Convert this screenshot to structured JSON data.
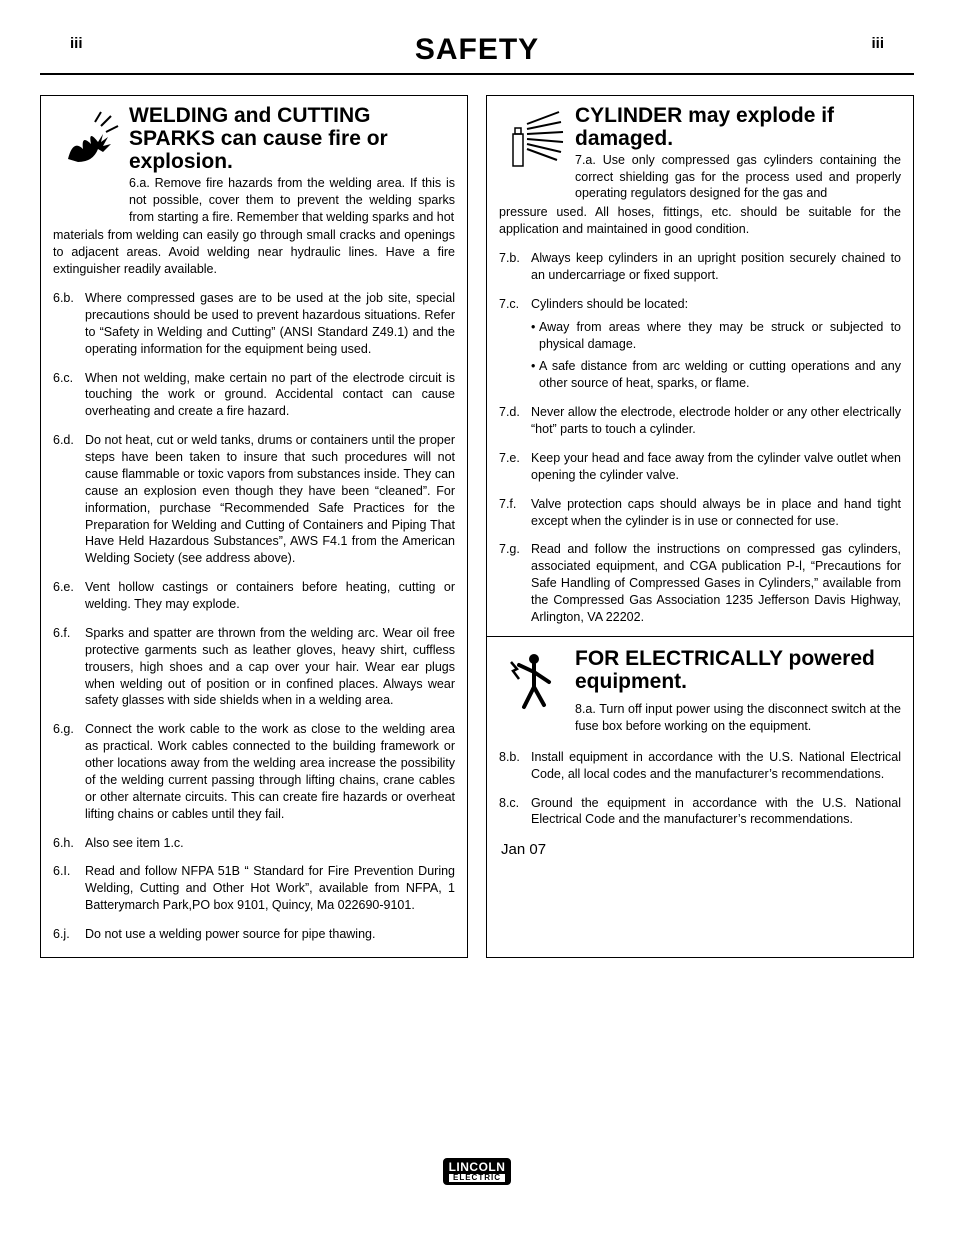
{
  "page": {
    "page_number": "iii",
    "title": "SAFETY",
    "date": "Jan 07",
    "logo": {
      "top": "LINCOLN",
      "bottom": "ELECTRIC"
    }
  },
  "sections": {
    "welding_sparks": {
      "title": "WELDING and CUTTING SPARKS can cause fire or explosion.",
      "first_inline": "6.a. Remove fire hazards from the welding area. If this is not possible, cover them to prevent the welding sparks from starting a fire. Remember that welding sparks and hot",
      "first_cont": "materials from welding can easily go through small cracks and openings to adjacent areas. Avoid welding near hydraulic lines. Have a fire extinguisher readily available.",
      "items": [
        {
          "label": "6.b.",
          "text": "Where compressed gases are to be used at the job site, special precautions should be used to prevent hazardous situations. Refer to “Safety in Welding and Cutting” (ANSI Standard Z49.1) and the operating information for the equipment being used."
        },
        {
          "label": "6.c.",
          "text": "When not welding, make certain no part of the electrode circuit is touching the work or ground. Accidental contact can cause overheating and create a fire hazard."
        },
        {
          "label": "6.d.",
          "text": "Do not heat, cut or weld tanks, drums or containers until the proper steps have been taken to insure that such procedures will not cause flammable or toxic vapors from substances inside. They can cause an explosion even though they have been “cleaned”. For information, purchase “Recommended Safe Practices for the Preparation for Welding and Cutting of Containers and Piping That Have Held Hazardous Substances”, AWS F4.1 from the American Welding Society (see address above)."
        },
        {
          "label": "6.e.",
          "text": "Vent hollow castings or containers before heating, cutting or welding. They may explode."
        },
        {
          "label": "6.f.",
          "text": "Sparks and spatter are thrown from the welding arc. Wear oil free protective garments such as leather gloves, heavy shirt, cuffless trousers, high shoes and a cap over your hair. Wear ear plugs when welding out of position or in confined places. Always wear safety glasses with side shields when in a welding area."
        },
        {
          "label": "6.g.",
          "text": "Connect the work cable to the work as close to the welding area as practical. Work cables connected to the building framework or other locations away from the welding area increase the possibility of the welding current passing through lifting chains, crane cables or other alternate circuits. This can create fire hazards or overheat lifting chains or cables until they fail."
        },
        {
          "label": "6.h.",
          "text": "Also see item 1.c."
        },
        {
          "label": "6.I.",
          "text": "Read and follow NFPA 51B “ Standard for Fire Prevention During Welding, Cutting and Other Hot Work”, available from NFPA, 1 Batterymarch Park,PO box 9101, Quincy, Ma 022690-9101."
        },
        {
          "label": "6.j.",
          "text": "Do not use a welding power source for pipe thawing."
        }
      ]
    },
    "cylinder": {
      "title": "CYLINDER may explode if damaged.",
      "first_inline": "7.a. Use only compressed gas cylinders containing the correct shielding gas for the process used and properly operating regulators designed for the gas and",
      "first_cont": "pressure used. All hoses, fittings, etc. should be suitable for the application and maintained in good condition.",
      "items": [
        {
          "label": "7.b.",
          "text": "Always keep cylinders in an upright position securely chained to an undercarriage or fixed support."
        },
        {
          "label": "7.c.",
          "text": "Cylinders should be located:",
          "subs": [
            "Away from areas where they may be struck or subjected to physical damage.",
            "A safe distance from arc welding or cutting operations and any other source of heat, sparks, or flame."
          ]
        },
        {
          "label": "7.d.",
          "text": "Never allow the electrode, electrode holder or any other electrically “hot” parts to touch a cylinder."
        },
        {
          "label": "7.e.",
          "text": "Keep your head and face away from the cylinder valve outlet when opening the cylinder valve."
        },
        {
          "label": "7.f.",
          "text": "Valve protection caps should always be in place and hand tight except when the cylinder is in use or connected for use."
        },
        {
          "label": "7.g.",
          "text": "Read and follow the instructions on compressed gas cylinders, associated equipment, and CGA publication P-l, “Precautions for Safe Handling of Compressed Gases in Cylinders,” available from the Compressed Gas Association 1235 Jefferson Davis Highway, Arlington, VA 22202."
        }
      ]
    },
    "electrical": {
      "title": "FOR ELECTRICALLY powered equipment.",
      "first_inline": "8.a. Turn off input power using the disconnect switch at the fuse box before working on the equipment.",
      "items": [
        {
          "label": "8.b.",
          "text": "Install equipment in accordance with the U.S. National Electrical Code, all local codes and the manufacturer’s recommendations."
        },
        {
          "label": "8.c.",
          "text": "Ground the equipment in accordance with the U.S. National Electrical Code and the manufacturer’s recommendations."
        }
      ]
    }
  }
}
